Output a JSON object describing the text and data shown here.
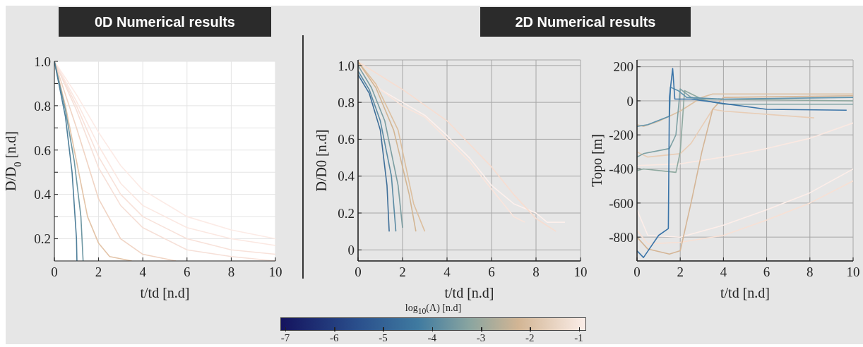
{
  "chart_data": [
    {
      "type": "line",
      "title": "0D Numerical results",
      "xlabel": "t/td [n.d]",
      "ylabel": "D/D$_{0}$ [n.d]",
      "xlim": [
        0,
        10
      ],
      "xticks": [
        0,
        2,
        4,
        6,
        8,
        10
      ],
      "ylim": [
        0.1,
        1.0
      ],
      "yticks": [
        {
          "value": 0.2,
          "label": "0.2"
        },
        {
          "value": 0.3,
          "label": null
        },
        {
          "value": 0.4,
          "label": "0.4"
        },
        {
          "value": 0.5,
          "label": null
        },
        {
          "value": 0.6,
          "label": "0.6"
        },
        {
          "value": 0.7,
          "label": null
        },
        {
          "value": 0.8,
          "label": "0.8"
        },
        {
          "value": 0.9,
          "label": null
        },
        {
          "value": 1.0,
          "label": "1.0"
        }
      ],
      "grid": true,
      "marker": "none",
      "line_style": "solid",
      "series": [
        {
          "color": "#f8e2da",
          "x": [
            0,
            1,
            2,
            3,
            4,
            6,
            8,
            10
          ],
          "values": [
            1,
            0.8,
            0.57,
            0.4,
            0.3,
            0.2,
            0.15,
            0.13
          ]
        },
        {
          "color": "#fcebe6",
          "x": [
            0,
            1,
            2,
            3,
            4,
            6,
            8,
            10
          ],
          "values": [
            1,
            0.85,
            0.68,
            0.53,
            0.42,
            0.3,
            0.24,
            0.2
          ]
        },
        {
          "color": "#fbe8e2",
          "x": [
            0,
            1,
            2,
            3,
            4,
            6,
            8,
            10
          ],
          "values": [
            1,
            0.82,
            0.62,
            0.45,
            0.35,
            0.25,
            0.2,
            0.17
          ]
        },
        {
          "color": "#f6e0d8",
          "x": [
            0,
            1,
            2,
            3,
            4,
            6,
            8,
            10
          ],
          "values": [
            1,
            0.78,
            0.52,
            0.35,
            0.25,
            0.15,
            0.12,
            0.1
          ]
        },
        {
          "color": "#f0d4c4",
          "x": [
            0,
            1,
            2,
            3,
            4,
            5.5
          ],
          "values": [
            1,
            0.7,
            0.38,
            0.2,
            0.13,
            0.1
          ]
        },
        {
          "color": "#e3c4a8",
          "x": [
            0,
            0.5,
            1,
            1.5,
            2,
            2.5,
            3.5
          ],
          "values": [
            1,
            0.8,
            0.55,
            0.3,
            0.18,
            0.12,
            0.1
          ]
        },
        {
          "color": "#6e97a3",
          "x": [
            0,
            0.5,
            0.9,
            1.2,
            1.3
          ],
          "values": [
            1,
            0.78,
            0.55,
            0.3,
            0.1
          ]
        },
        {
          "color": "#4f7f9a",
          "x": [
            0,
            0.5,
            0.8,
            1.0,
            1.02
          ],
          "values": [
            1,
            0.75,
            0.5,
            0.2,
            0.1
          ]
        }
      ]
    },
    {
      "type": "line",
      "title": "2D Numerical results",
      "xlabel": "t/td [n.d]",
      "ylabel": "D/D0 [n.d]",
      "clabel": "log$_{10}$(Λ) [n.d]",
      "clim": [
        -7.1,
        -0.85
      ],
      "cticks": [
        -7,
        -6,
        -5,
        -4,
        -3,
        -2,
        -1
      ],
      "xlim": [
        0,
        10
      ],
      "xticks": [
        0,
        2,
        4,
        6,
        8,
        10
      ],
      "ylim": [
        -0.06,
        1.03
      ],
      "yticks": [
        0,
        0.2,
        0.4,
        0.6,
        0.8,
        {
          "value": 1.0,
          "label": "1.0"
        }
      ],
      "grid": true,
      "marker": "none",
      "line_style": "solid",
      "series": [
        {
          "color": "#fdf0ec",
          "x": [
            0,
            1,
            2,
            3,
            4,
            5,
            6,
            7,
            8,
            8.5,
            9.3
          ],
          "values": [
            1.0,
            0.87,
            0.8,
            0.73,
            0.62,
            0.5,
            0.35,
            0.25,
            0.2,
            0.15,
            0.15
          ]
        },
        {
          "color": "#fae5dc",
          "x": [
            0,
            1,
            2,
            3,
            4,
            5,
            6,
            7,
            7.5
          ],
          "values": [
            1.0,
            0.87,
            0.78,
            0.72,
            0.6,
            0.48,
            0.33,
            0.18,
            0.15
          ]
        },
        {
          "color": "#f8ddd0",
          "x": [
            0,
            2,
            4,
            6,
            7,
            8,
            8.9
          ],
          "values": [
            1.02,
            0.87,
            0.7,
            0.45,
            0.3,
            0.17,
            0.1
          ]
        },
        {
          "color": "#dcbf9f",
          "x": [
            0,
            0.8,
            1.8,
            2.5,
            3.0
          ],
          "values": [
            1.02,
            0.9,
            0.65,
            0.25,
            0.1
          ]
        },
        {
          "color": "#d2b593",
          "x": [
            0,
            0.8,
            1.6,
            2.3,
            2.6
          ],
          "values": [
            1.02,
            0.88,
            0.65,
            0.3,
            0.1
          ]
        },
        {
          "color": "#7c9ea2",
          "x": [
            0,
            0.6,
            1.2,
            1.8,
            2.0
          ],
          "values": [
            1.0,
            0.88,
            0.7,
            0.35,
            0.12
          ]
        },
        {
          "color": "#5a8aa3",
          "x": [
            0,
            0.5,
            1,
            1.5,
            1.7
          ],
          "values": [
            0.97,
            0.87,
            0.7,
            0.4,
            0.1
          ]
        },
        {
          "color": "#3f6f99",
          "x": [
            0,
            0.5,
            1,
            1.3,
            1.4
          ],
          "values": [
            0.95,
            0.85,
            0.65,
            0.35,
            0.1
          ]
        }
      ]
    },
    {
      "type": "line",
      "xlabel": "t/td [n.d]",
      "ylabel": "Topo [m]",
      "xlim": [
        0,
        10
      ],
      "xticks": [
        0,
        2,
        4,
        6,
        8,
        10
      ],
      "ylim": [
        -940,
        240
      ],
      "yticks": [
        -800,
        -600,
        -400,
        -200,
        0,
        200
      ],
      "grid": true,
      "marker": "none",
      "line_style": "solid",
      "series": [
        {
          "color": "#fdeee9",
          "x": [
            0,
            0.5,
            2,
            4,
            6,
            8,
            10
          ],
          "values": [
            -640,
            -790,
            -800,
            -730,
            -640,
            -540,
            -400
          ]
        },
        {
          "color": "#fbe9e2",
          "x": [
            0,
            2,
            4,
            6,
            8,
            10
          ],
          "values": [
            -380,
            -370,
            -330,
            -280,
            -220,
            -130
          ]
        },
        {
          "color": "#f8e0d4",
          "x": [
            0,
            0.5,
            2,
            4,
            6,
            8,
            10
          ],
          "values": [
            -760,
            -840,
            -830,
            -790,
            -700,
            -600,
            -470
          ]
        },
        {
          "color": "#e8cdb6",
          "x": [
            0,
            0.5,
            2,
            2.5,
            3,
            3.5,
            4,
            8.2
          ],
          "values": [
            -300,
            -330,
            -310,
            -250,
            -150,
            -50,
            -60,
            -100
          ]
        },
        {
          "color": "#dcc0a2",
          "x": [
            0,
            0.3,
            1,
            2,
            2.5,
            3,
            3.5,
            10
          ],
          "values": [
            -140,
            -150,
            -120,
            -60,
            -20,
            20,
            40,
            40
          ]
        },
        {
          "color": "#d4b596",
          "x": [
            0,
            0.5,
            1.5,
            2.0,
            2.5,
            3,
            3.5,
            4,
            10
          ],
          "values": [
            -800,
            -870,
            -900,
            -880,
            -600,
            -300,
            -50,
            20,
            30
          ]
        },
        {
          "color": "#8fa9a0",
          "x": [
            0,
            0.3,
            1.8,
            2.0,
            2.2,
            3,
            10
          ],
          "values": [
            -410,
            -400,
            -420,
            -300,
            60,
            10,
            0
          ]
        },
        {
          "color": "#7ea1a4",
          "x": [
            0,
            0.3,
            1.5,
            1.8,
            2.0,
            2.5,
            4,
            10
          ],
          "values": [
            -330,
            -310,
            -280,
            -200,
            70,
            20,
            -20,
            -20
          ]
        },
        {
          "color": "#5f93ad",
          "x": [
            0,
            0.5,
            1.5,
            1.55,
            1.9,
            2.3,
            4,
            10
          ],
          "values": [
            -150,
            -140,
            -90,
            80,
            60,
            20,
            10,
            20
          ]
        },
        {
          "color": "#3a74a8",
          "x": [
            0,
            0.3,
            1,
            1.45,
            1.5,
            1.65,
            1.75,
            2.5,
            6,
            9.7
          ],
          "values": [
            -880,
            -920,
            -790,
            -750,
            20,
            190,
            10,
            10,
            -50,
            -55
          ]
        }
      ]
    }
  ]
}
